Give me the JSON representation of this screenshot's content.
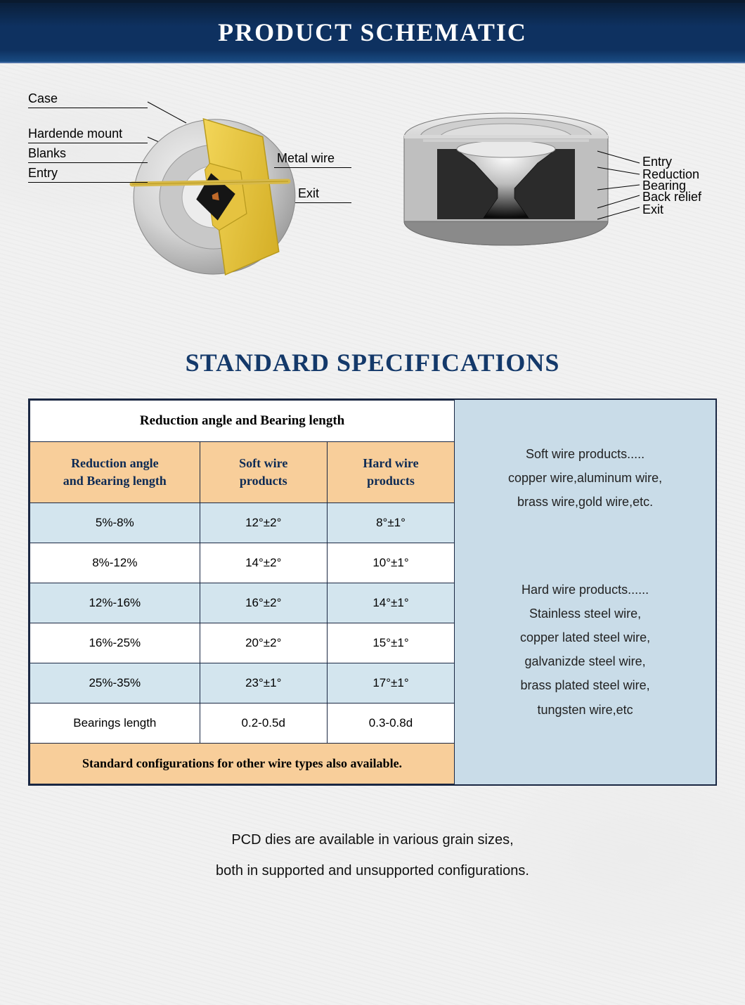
{
  "header": {
    "title": "PRODUCT SCHEMATIC"
  },
  "section_title": "STANDARD SPECIFICATIONS",
  "schematic": {
    "left": {
      "labels": {
        "case": "Case",
        "hardened_mount": "Hardende mount",
        "blanks": "Blanks",
        "entry": "Entry",
        "metal_wire": "Metal wire",
        "exit": "Exit"
      },
      "colors": {
        "ring_light": "#e3e3e3",
        "ring_shadow": "#b8b8b8",
        "ring_dark": "#9a9a9a",
        "cut_face": "#e9c733",
        "cut_edge": "#b89a1e",
        "blank": "#1a1a1a",
        "wire": "#d7b94a",
        "entry_pt": "#c06a2a"
      }
    },
    "right": {
      "labels": {
        "entry": "Entry",
        "reduction": "Reduction",
        "bearing": "Bearing",
        "back_relief": "Back relief",
        "exit": "Exit"
      },
      "colors": {
        "case_top": "#d8d8d8",
        "case_face": "#b0b0b0",
        "case_edge": "#7a7a7a",
        "insert": "#2b2b2b",
        "bore_highlight": "#f5f5f5",
        "bore_shadow": "#0a0a0a"
      }
    }
  },
  "spec_table": {
    "merged_title": "Reduction angle and Bearing length",
    "columns": [
      "Reduction angle\nand Bearing length",
      "Soft wire\nproducts",
      "Hard wire\nproducts"
    ],
    "rows": [
      {
        "cells": [
          "5%-8%",
          "12°±2°",
          "8°±1°"
        ],
        "alt": true
      },
      {
        "cells": [
          "8%-12%",
          "14°±2°",
          "10°±1°"
        ],
        "alt": false
      },
      {
        "cells": [
          "12%-16%",
          "16°±2°",
          "14°±1°"
        ],
        "alt": true
      },
      {
        "cells": [
          "16%-25%",
          "20°±2°",
          "15°±1°"
        ],
        "alt": false
      },
      {
        "cells": [
          "25%-35%",
          "23°±1°",
          "17°±1°"
        ],
        "alt": true
      },
      {
        "cells": [
          "Bearings length",
          "0.2-0.5d",
          "0.3-0.8d"
        ],
        "alt": false
      }
    ],
    "footer": "Standard configurations for other wire types also available.",
    "col_widths_pct": [
      40,
      30,
      30
    ],
    "colors": {
      "border": "#1a2742",
      "header_bg": "#f8ce9a",
      "header_text": "#0d2a54",
      "alt_row_bg": "#d3e5ee",
      "plain_row_bg": "#ffffff",
      "side_bg": "#c9dce8"
    }
  },
  "side_panel": {
    "soft": "Soft wire products.....\ncopper wire,aluminum wire,\nbrass wire,gold wire,etc.",
    "hard": "Hard wire products......\nStainless steel wire,\ncopper lated steel wire,\ngalvanizde steel wire,\nbrass plated steel wire,\ntungsten wire,etc"
  },
  "footnote": "PCD dies are available in various grain sizes,\nboth in supported and unsupported configurations."
}
